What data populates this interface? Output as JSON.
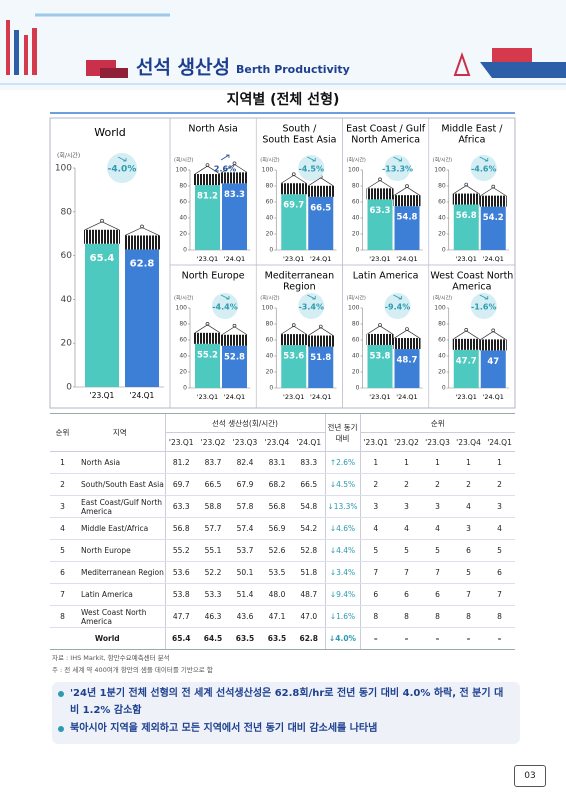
{
  "header": {
    "title": "선석 생산성",
    "title_en": "Berth Productivity",
    "subtitle": "지역별 (전체 선형)"
  },
  "chart_data": [
    {
      "type": "bar",
      "title": [
        "World"
      ],
      "y_label": "(회/시간)",
      "change": "-4.0%",
      "trend": "down",
      "categories": [
        "'23.Q1",
        "'24.Q1"
      ],
      "values": [
        65.4,
        62.8
      ],
      "colors": [
        "#4ec9bf",
        "#3d7fd6"
      ],
      "ylim": [
        0,
        100
      ],
      "yticks": [
        0,
        20,
        40,
        60,
        80,
        100
      ]
    },
    {
      "type": "bar",
      "title": [
        "North Asia"
      ],
      "y_label": "(회/시간)",
      "change": "2.6%",
      "trend": "up",
      "categories": [
        "'23.Q1",
        "'24.Q1"
      ],
      "values": [
        81.2,
        83.3
      ],
      "colors": [
        "#4ec9bf",
        "#3d7fd6"
      ],
      "ylim": [
        0,
        100
      ],
      "yticks": [
        0,
        20,
        40,
        60,
        80,
        100
      ]
    },
    {
      "type": "bar",
      "title": [
        "South /",
        "South East Asia"
      ],
      "y_label": "(회/시간)",
      "change": "-4.5%",
      "trend": "down",
      "categories": [
        "'23.Q1",
        "'24.Q1"
      ],
      "values": [
        69.7,
        66.5
      ],
      "colors": [
        "#4ec9bf",
        "#3d7fd6"
      ],
      "ylim": [
        0,
        100
      ],
      "yticks": [
        0,
        20,
        40,
        60,
        80,
        100
      ]
    },
    {
      "type": "bar",
      "title": [
        "East Coast / Gulf",
        "North America"
      ],
      "y_label": "(회/시간)",
      "change": "-13.3%",
      "trend": "down",
      "categories": [
        "'23.Q1",
        "'24.Q1"
      ],
      "values": [
        63.3,
        54.8
      ],
      "colors": [
        "#4ec9bf",
        "#3d7fd6"
      ],
      "ylim": [
        0,
        100
      ],
      "yticks": [
        0,
        20,
        40,
        60,
        80,
        100
      ]
    },
    {
      "type": "bar",
      "title": [
        "Middle East /",
        "Africa"
      ],
      "y_label": "(회/시간)",
      "change": "-4.6%",
      "trend": "down",
      "categories": [
        "'23.Q1",
        "'24.Q1"
      ],
      "values": [
        56.8,
        54.2
      ],
      "colors": [
        "#4ec9bf",
        "#3d7fd6"
      ],
      "ylim": [
        0,
        100
      ],
      "yticks": [
        0,
        20,
        40,
        60,
        80,
        100
      ]
    },
    {
      "type": "bar",
      "title": [
        "North Europe"
      ],
      "y_label": "(회/시간)",
      "change": "-4.4%",
      "trend": "down",
      "categories": [
        "'23.Q1",
        "'24.Q1"
      ],
      "values": [
        55.2,
        52.8
      ],
      "colors": [
        "#4ec9bf",
        "#3d7fd6"
      ],
      "ylim": [
        0,
        100
      ],
      "yticks": [
        0,
        20,
        40,
        60,
        80,
        100
      ]
    },
    {
      "type": "bar",
      "title": [
        "Mediterranean",
        "Region"
      ],
      "y_label": "(회/시간)",
      "change": "-3.4%",
      "trend": "down",
      "categories": [
        "'23.Q1",
        "'24.Q1"
      ],
      "values": [
        53.6,
        51.8
      ],
      "colors": [
        "#4ec9bf",
        "#3d7fd6"
      ],
      "ylim": [
        0,
        100
      ],
      "yticks": [
        0,
        20,
        40,
        60,
        80,
        100
      ]
    },
    {
      "type": "bar",
      "title": [
        "Latin America"
      ],
      "y_label": "(회/시간)",
      "change": "-9.4%",
      "trend": "down",
      "categories": [
        "'23.Q1",
        "'24.Q1"
      ],
      "values": [
        53.8,
        48.7
      ],
      "colors": [
        "#4ec9bf",
        "#3d7fd6"
      ],
      "ylim": [
        0,
        100
      ],
      "yticks": [
        0,
        20,
        40,
        60,
        80,
        100
      ]
    },
    {
      "type": "bar",
      "title": [
        "West Coast North",
        "America"
      ],
      "y_label": "(회/시간)",
      "change": "-1.6%",
      "trend": "down",
      "categories": [
        "'23.Q1",
        "'24.Q1"
      ],
      "values": [
        47.7,
        47.0
      ],
      "colors": [
        "#4ec9bf",
        "#3d7fd6"
      ],
      "ylim": [
        0,
        100
      ],
      "yticks": [
        0,
        20,
        40,
        60,
        80,
        100
      ]
    }
  ],
  "table": {
    "headers": {
      "rank": "순위",
      "region": "지역",
      "productivity": "선석 생산성(회/시간)",
      "yoy": "전년 동기 대비",
      "ranking": "순위",
      "quarters": [
        "'23.Q1",
        "'23.Q2",
        "'23.Q3",
        "'23.Q4",
        "'24.Q1"
      ]
    },
    "rows": [
      [
        "1",
        "North Asia",
        "81.2",
        "83.7",
        "82.4",
        "83.1",
        "83.3",
        "↑2.6%",
        "1",
        "1",
        "1",
        "1",
        "1"
      ],
      [
        "2",
        "South/South East Asia",
        "69.7",
        "66.5",
        "67.9",
        "68.2",
        "66.5",
        "↓4.5%",
        "2",
        "2",
        "2",
        "2",
        "2"
      ],
      [
        "3",
        "East Coast/Gulf North America",
        "63.3",
        "58.8",
        "57.8",
        "56.8",
        "54.8",
        "↓13.3%",
        "3",
        "3",
        "3",
        "4",
        "3"
      ],
      [
        "4",
        "Middle East/Africa",
        "56.8",
        "57.7",
        "57.4",
        "56.9",
        "54.2",
        "↓4.6%",
        "4",
        "4",
        "4",
        "3",
        "4"
      ],
      [
        "5",
        "North Europe",
        "55.2",
        "55.1",
        "53.7",
        "52.6",
        "52.8",
        "↓4.4%",
        "5",
        "5",
        "5",
        "6",
        "5"
      ],
      [
        "6",
        "Mediterranean Region",
        "53.6",
        "52.2",
        "50.1",
        "53.5",
        "51.8",
        "↓3.4%",
        "7",
        "7",
        "7",
        "5",
        "6"
      ],
      [
        "7",
        "Latin America",
        "53.8",
        "53.3",
        "51.4",
        "48.0",
        "48.7",
        "↓9.4%",
        "6",
        "6",
        "6",
        "7",
        "7"
      ],
      [
        "8",
        "West Coast North America",
        "47.7",
        "46.3",
        "43.6",
        "47.1",
        "47.0",
        "↓1.6%",
        "8",
        "8",
        "8",
        "8",
        "8"
      ],
      [
        "World",
        "65.4",
        "64.5",
        "63.5",
        "63.5",
        "62.8",
        "↓4.0%",
        "–",
        "–",
        "–",
        "–",
        "–"
      ]
    ]
  },
  "notes": [
    "자료 : IHS Markit, 항만수요예측센터 분석",
    "주    : 전 세계 약 400여개 항만의 샘플 데이터를 기반으로 함"
  ],
  "bullets": [
    "'24년 1분기 전체 선형의 전 세계 선석생산성은 62.8회/hr로 전년 동기 대비 4.0% 하락, 전 분기 대비 1.2% 감소함",
    "북아시아 지역을 제외하고 모든 지역에서 전년 동기 대비 감소세를 나타냄"
  ],
  "page_number": "03"
}
